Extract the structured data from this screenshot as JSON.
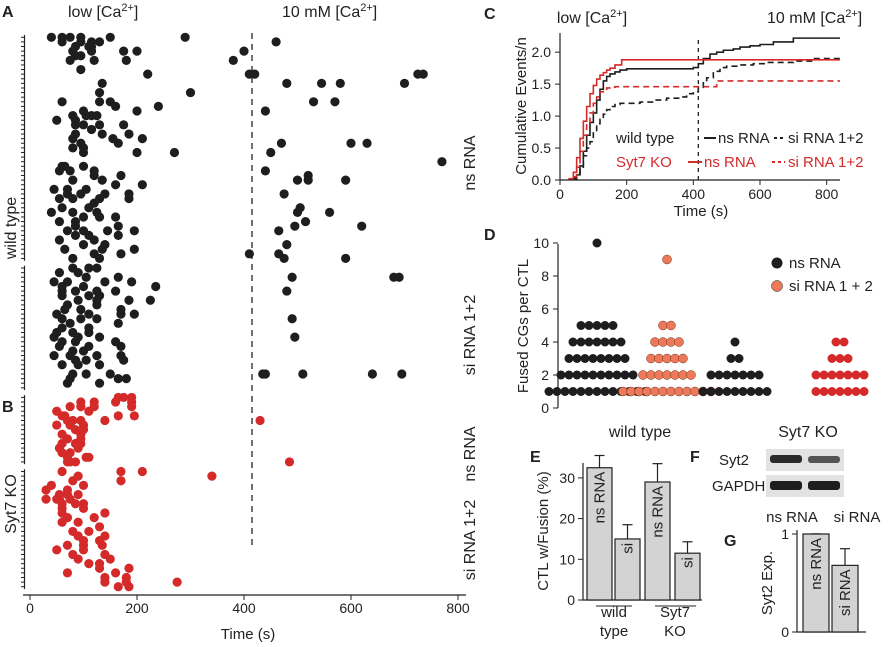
{
  "colors": {
    "black": "#1e1e1e",
    "red": "#d42a2a",
    "salmon": "#ec7a5a",
    "bar": "#d3d3d3"
  },
  "chart_data": [
    {
      "panel": "A",
      "type": "scatter",
      "title_low": "low [Ca",
      "title_high": "10 mM [Ca",
      "sup": "2+",
      "close": "]",
      "xlabel": "Time (s)",
      "xlim": [
        -10,
        830
      ],
      "xticks": [
        "0",
        "200",
        "400",
        "600",
        "800"
      ],
      "xtick_values": [
        0,
        200,
        400,
        600,
        800
      ],
      "divider_time": 415,
      "ylabel_group": "wild type",
      "groups": [
        {
          "label": "ns RNA",
          "color": "black",
          "cells": [
            [
              40,
              60,
              75,
              95,
              150,
              290
            ],
            [
              60,
              95,
              115,
              130,
              460
            ],
            [
              85,
              110,
              115
            ],
            [
              80,
              115,
              175,
              200,
              400
            ],
            [
              85,
              95
            ],
            [
              75,
              120,
              180,
              380
            ],
            [],
            [
              95
            ],
            [
              220,
              410,
              420,
              725,
              735
            ],
            [],
            [
              135,
              480,
              545,
              580,
              700
            ],
            [],
            [
              130,
              300
            ],
            [],
            [
              60,
              130,
              150,
              530,
              570
            ],
            [
              160,
              240
            ],
            [
              100,
              200,
              440
            ],
            [
              80,
              105,
              115,
              125
            ],
            [
              50,
              85
            ],
            [
              85,
              100,
              130,
              175
            ],
            [
              115
            ],
            [
              85,
              135,
              185
            ],
            [
              80,
              155,
              210
            ],
            [
              95,
              165,
              470,
              600,
              630
            ],
            [
              80,
              100
            ],
            [
              100,
              200,
              270,
              450
            ],
            [],
            [
              770
            ],
            [
              60,
              65,
              100
            ],
            [
              55,
              75,
              120,
              440
            ],
            [
              120,
              170,
              520
            ],
            [
              80,
              135,
              500,
              520,
              590
            ],
            [
              160,
              210
            ],
            [
              45,
              70,
              105
            ],
            [
              70,
              95,
              140,
              185,
              475
            ],
            [
              55,
              80,
              130,
              185
            ],
            [
              120
            ],
            [
              60,
              110,
              505
            ],
            [
              40,
              80,
              125,
              500,
              560
            ],
            [
              100,
              130,
              160
            ],
            [
              55,
              85,
              515
            ],
            [
              85,
              165,
              495,
              620
            ],
            [
              70,
              100,
              145,
              195,
              465
            ],
            [
              85,
              110,
              165
            ],
            [
              55,
              120
            ],
            [
              100,
              140,
              480
            ],
            [
              65,
              135,
              195
            ],
            [
              120,
              170,
              410,
              465
            ],
            [
              80,
              130,
              475,
              590
            ]
          ]
        },
        {
          "label": "si RNA 1+2",
          "color": "black",
          "cells": [
            [
              80,
              110,
              125
            ],
            [
              55,
              90
            ],
            [
              105,
              165,
              490,
              680,
              690
            ],
            [
              45,
              70,
              140,
              190
            ],
            [
              60,
              100,
              235
            ],
            [
              60,
              85,
              125,
              160,
              480
            ],
            [
              60,
              110,
              130
            ],
            [
              90,
              125,
              185,
              225
            ],
            [
              70,
              125
            ],
            [
              65,
              95,
              170
            ],
            [
              50,
              110,
              170,
              195
            ],
            [
              60,
              95,
              125,
              490
            ],
            [
              75,
              165
            ],
            [
              60,
              110
            ],
            [
              50,
              80,
              110
            ],
            [
              45,
              90,
              130,
              495
            ],
            [
              60,
              85,
              160
            ],
            [
              55,
              110,
              170
            ],
            [
              80,
              100
            ],
            [
              45,
              75,
              125,
              170
            ],
            [
              85,
              105,
              175
            ],
            [
              60,
              90,
              130
            ],
            [],
            [
              80,
              105,
              150,
              435,
              440,
              510,
              640,
              695
            ],
            [
              75,
              165,
              180
            ],
            [
              70,
              130
            ],
            []
          ]
        }
      ]
    },
    {
      "panel": "B",
      "type": "scatter",
      "ylabel_group": "Syt7 KO",
      "groups": [
        {
          "label": "ns RNA",
          "color": "red",
          "cells": [
            [
              165,
              175,
              190
            ],
            [
              95,
              120,
              160,
              190
            ],
            [
              75,
              95,
              120,
              190
            ],
            [
              50,
              110
            ],
            [
              60,
              65,
              165,
              195
            ],
            [
              70,
              80,
              95,
              140,
              430
            ],
            [
              50,
              75,
              100
            ],
            [
              85,
              100
            ],
            [
              60,
              95
            ],
            [
              70,
              95
            ],
            [
              60,
              85,
              95
            ],
            [
              55,
              90
            ],
            [
              60,
              75
            ],
            [
              70,
              105,
              110
            ],
            [
              70,
              75,
              85,
              485
            ]
          ]
        },
        {
          "label": "si RNA 1+2",
          "color": "red",
          "cells": [
            [
              60,
              170,
              210
            ],
            [
              90,
              340
            ],
            [
              80,
              170
            ],
            [
              40,
              100
            ],
            [
              30,
              70
            ],
            [
              55,
              70,
              90
            ],
            [
              30,
              50,
              55,
              75
            ],
            [
              60,
              85,
              100
            ],
            [
              60,
              100
            ],
            [
              60,
              140
            ],
            [
              70,
              120
            ],
            [
              60,
              90
            ],
            [
              130
            ],
            [
              80,
              110
            ],
            [
              90,
              140
            ],
            [
              100,
              130
            ],
            [
              70,
              100,
              135
            ],
            [
              50,
              100
            ],
            [
              80,
              140
            ],
            [
              90,
              150
            ],
            [
              110,
              130
            ],
            [
              130,
              185
            ],
            [
              70,
              160
            ],
            [
              140,
              180
            ],
            [
              140,
              180,
              275
            ],
            [
              165,
              185
            ]
          ]
        }
      ]
    },
    {
      "panel": "C",
      "type": "line",
      "ylabel": "Cumulative Events/n",
      "xlabel": "Time (s)",
      "title_low": "low [Ca",
      "title_high": "10 mM [Ca",
      "sup": "2+",
      "close": "]",
      "xlim": [
        0,
        840
      ],
      "ylim": [
        0,
        2.3
      ],
      "xticks": [
        0,
        200,
        400,
        600,
        800
      ],
      "yticks": [
        "0.0",
        "0.5",
        "1.0",
        "1.5",
        "2.0"
      ],
      "ytick_values": [
        0,
        0.5,
        1.0,
        1.5,
        2.0
      ],
      "divider_time": 415,
      "legend": {
        "row1": {
          "name": "wild type",
          "ns": "ns RNA",
          "si": "si RNA 1+2"
        },
        "row2": {
          "name": "Syt7 KO",
          "ns": "ns RNA",
          "si": "si RNA 1+2"
        }
      },
      "series": [
        {
          "name": "wild type ns RNA",
          "color": "black",
          "dash": false,
          "x": [
            40,
            50,
            60,
            70,
            80,
            90,
            100,
            110,
            120,
            130,
            140,
            150,
            165,
            180,
            200,
            220,
            240,
            260,
            280,
            300,
            320,
            340,
            360,
            380,
            400,
            415,
            430,
            450,
            470,
            490,
            520,
            540,
            570,
            600,
            640,
            700,
            750,
            840
          ],
          "y": [
            0.02,
            0.08,
            0.22,
            0.45,
            0.7,
            0.9,
            1.05,
            1.25,
            1.42,
            1.55,
            1.62,
            1.66,
            1.69,
            1.72,
            1.74,
            1.74,
            1.74,
            1.74,
            1.74,
            1.74,
            1.74,
            1.74,
            1.74,
            1.74,
            1.76,
            1.82,
            1.9,
            1.97,
            2.0,
            2.03,
            2.05,
            2.08,
            2.1,
            2.12,
            2.16,
            2.22,
            2.22,
            2.22
          ]
        },
        {
          "name": "wild type si RNA 1+2",
          "color": "black",
          "dash": true,
          "x": [
            40,
            50,
            60,
            70,
            80,
            90,
            100,
            110,
            120,
            130,
            140,
            150,
            165,
            180,
            200,
            240,
            280,
            320,
            360,
            380,
            400,
            415,
            430,
            440,
            460,
            480,
            500,
            540,
            580,
            620,
            700,
            760,
            840
          ],
          "y": [
            0.03,
            0.1,
            0.2,
            0.38,
            0.5,
            0.6,
            0.75,
            0.88,
            0.95,
            1.03,
            1.1,
            1.15,
            1.18,
            1.2,
            1.2,
            1.22,
            1.25,
            1.28,
            1.3,
            1.35,
            1.38,
            1.45,
            1.52,
            1.6,
            1.7,
            1.76,
            1.78,
            1.8,
            1.82,
            1.84,
            1.86,
            1.9,
            1.93
          ]
        },
        {
          "name": "Syt7 KO ns RNA",
          "color": "red",
          "dash": false,
          "x": [
            25,
            40,
            50,
            60,
            70,
            80,
            90,
            100,
            110,
            120,
            130,
            140,
            150,
            165,
            185,
            300,
            415,
            840
          ],
          "y": [
            0.02,
            0.12,
            0.35,
            0.65,
            0.92,
            1.15,
            1.35,
            1.48,
            1.58,
            1.64,
            1.68,
            1.72,
            1.75,
            1.8,
            1.88,
            1.88,
            1.88,
            1.88
          ]
        },
        {
          "name": "Syt7 KO si RNA 1+2",
          "color": "red",
          "dash": true,
          "x": [
            40,
            50,
            60,
            70,
            80,
            90,
            100,
            110,
            120,
            130,
            140,
            150,
            165,
            180,
            415,
            470,
            840
          ],
          "y": [
            0.05,
            0.2,
            0.45,
            0.7,
            0.9,
            1.05,
            1.2,
            1.3,
            1.38,
            1.42,
            1.44,
            1.45,
            1.46,
            1.46,
            1.46,
            1.55,
            1.55
          ]
        }
      ]
    },
    {
      "panel": "D",
      "type": "scatter",
      "ylabel": "Fused CGs per CTL",
      "ylim": [
        0,
        10
      ],
      "yticks": [
        0,
        2,
        4,
        6,
        8,
        10
      ],
      "legend": [
        "ns RNA",
        "si RNA 1 + 2"
      ],
      "group_labels": [
        "wild type",
        "Syt7 KO"
      ],
      "columns": [
        {
          "group": "wild type",
          "label": "ns RNA",
          "color": "black",
          "counts": {
            "1": 13,
            "2": 10,
            "3": 8,
            "4": 7,
            "5": 5,
            "10": 1
          }
        },
        {
          "group": "wild type",
          "label": "si RNA 1 + 2",
          "color": "salmon",
          "counts": {
            "1": 12,
            "2": 7,
            "3": 5,
            "4": 4,
            "5": 2,
            "9": 1
          }
        },
        {
          "group": "Syt7 KO",
          "label": "ns RNA",
          "color": "black",
          "counts": {
            "1": 9,
            "2": 7,
            "3": 2,
            "4": 1
          }
        },
        {
          "group": "Syt7 KO",
          "label": "si RNA 1 + 2",
          "color": "red",
          "counts": {
            "1": 7,
            "2": 7,
            "3": 3,
            "4": 2
          }
        }
      ]
    },
    {
      "panel": "E",
      "type": "bar",
      "ylabel": "CTL w/Fusion (%)",
      "ylim": [
        0,
        36
      ],
      "yticks": [
        0,
        10,
        20,
        30
      ],
      "group_labels": [
        [
          "wild",
          "type"
        ],
        [
          "Syt7",
          "KO"
        ]
      ],
      "bars": [
        {
          "group": "wild type",
          "label": "ns RNA",
          "value": 32.5,
          "error": 3
        },
        {
          "group": "wild type",
          "label": "si",
          "value": 15,
          "error": 3.5
        },
        {
          "group": "Syt7 KO",
          "label": "ns RNA",
          "value": 29,
          "error": 4.5
        },
        {
          "group": "Syt7 KO",
          "label": "si",
          "value": 11.5,
          "error": 2.8
        }
      ]
    },
    {
      "panel": "F",
      "type": "blot",
      "rows": [
        "Syt2",
        "GAPDH"
      ],
      "lanes": [
        "ns RNA",
        "si RNA"
      ]
    },
    {
      "panel": "G",
      "type": "bar",
      "ylabel": "Syt2 Exp.",
      "ylim": [
        0,
        1
      ],
      "yticks": [
        0,
        1
      ],
      "bars": [
        {
          "label": "ns RNA",
          "value": 1.0,
          "error": 0
        },
        {
          "label": "si RNA",
          "value": 0.68,
          "error": 0.17
        }
      ]
    }
  ]
}
